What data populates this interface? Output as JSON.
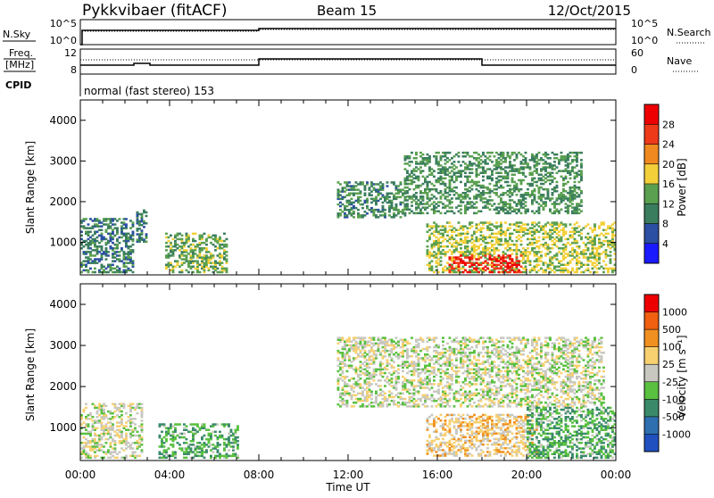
{
  "header": {
    "station": "Pykkvibaer (fitACF)",
    "beam": "Beam 15",
    "date": "12/Oct/2015"
  },
  "status_panels": {
    "nsky_label": "N.Sky",
    "nsky_ticks": [
      "10^5",
      "10^0"
    ],
    "nsearch_label": "N.Search",
    "freq_label_line1": "Freq.",
    "freq_label_line2": "[MHz]",
    "freq_ticks": [
      "12",
      "8"
    ],
    "nave_label": "Nave",
    "nave_ticks": [
      "60",
      "0"
    ],
    "cpid_label": "CPID",
    "cpid_value": "normal (fast stereo) 153"
  },
  "chart_data": [
    {
      "type": "heatmap",
      "ylabel": "Slant Range [km]",
      "xlabel": "",
      "ylim": [
        200,
        4500
      ],
      "xlim": [
        0,
        24
      ],
      "yticks": [
        1000,
        2000,
        3000,
        4000
      ],
      "colorbar": {
        "label": "Power [dB]",
        "ticks": [
          4,
          8,
          12,
          16,
          20,
          24,
          28
        ],
        "range": [
          0,
          32
        ],
        "colors": [
          "#1a1aff",
          "#2b4fa3",
          "#3a7d5e",
          "#5aa050",
          "#f3d03a",
          "#f08a20",
          "#ef3a1a",
          "#ee0000"
        ]
      },
      "features": [
        {
          "t_start": 0.0,
          "t_end": 2.4,
          "r_low": 250,
          "r_high": 1600,
          "level": 10
        },
        {
          "t_start": 2.5,
          "t_end": 3.0,
          "r_low": 1000,
          "r_high": 1800,
          "level": 9
        },
        {
          "t_start": 3.8,
          "t_end": 6.5,
          "r_low": 250,
          "r_high": 1200,
          "level": 14
        },
        {
          "t_start": 11.5,
          "t_end": 14.5,
          "r_low": 1600,
          "r_high": 2500,
          "level": 11
        },
        {
          "t_start": 14.5,
          "t_end": 22.5,
          "r_low": 1700,
          "r_high": 3200,
          "level": 12
        },
        {
          "t_start": 15.5,
          "t_end": 24.0,
          "r_low": 250,
          "r_high": 1500,
          "level": 16
        },
        {
          "t_start": 16.5,
          "t_end": 19.8,
          "r_low": 250,
          "r_high": 700,
          "level": 28
        }
      ]
    },
    {
      "type": "heatmap",
      "ylabel": "Slant Range [km]",
      "xlabel": "Time UT",
      "ylim": [
        200,
        4500
      ],
      "xlim": [
        0,
        24
      ],
      "yticks": [
        1000,
        2000,
        3000,
        4000
      ],
      "colorbar": {
        "label": "Velocity [m s⁻¹]",
        "ticks": [
          1000,
          500,
          100,
          25,
          -25,
          -100,
          -500,
          -1000
        ],
        "range": [
          -1000,
          1000
        ],
        "colors": [
          "#2050c0",
          "#2e6fb0",
          "#3a8a6a",
          "#59c040",
          "#c8c8c0",
          "#f7d070",
          "#f09020",
          "#f06010",
          "#ee0000"
        ]
      },
      "features": [
        {
          "t_start": 0.0,
          "t_end": 2.8,
          "r_low": 250,
          "r_high": 1600,
          "level": 0
        },
        {
          "t_start": 3.5,
          "t_end": 7.0,
          "r_low": 250,
          "r_high": 1100,
          "level": -300
        },
        {
          "t_start": 11.5,
          "t_end": 23.5,
          "r_low": 1500,
          "r_high": 3200,
          "level": 0
        },
        {
          "t_start": 15.5,
          "t_end": 20.5,
          "r_low": 300,
          "r_high": 1300,
          "level": 200
        },
        {
          "t_start": 20.0,
          "t_end": 24.0,
          "r_low": 250,
          "r_high": 1500,
          "level": -300
        }
      ]
    }
  ],
  "time_axis": {
    "ticks": [
      "00:00",
      "04:00",
      "08:00",
      "12:00",
      "16:00",
      "20:00",
      "00:00"
    ],
    "tick_hours": [
      0,
      4,
      8,
      12,
      16,
      20,
      24
    ]
  }
}
